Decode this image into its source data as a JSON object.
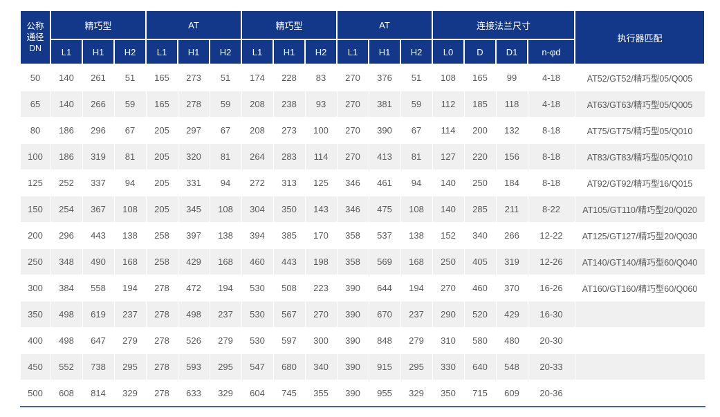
{
  "colors": {
    "header_bg": "#13388a",
    "header_text": "#ffffff",
    "row_bg": "#ffffff",
    "row_alt_bg": "#f0f0f0",
    "cell_text": "#595959",
    "bottom_rule": "#3c64b1"
  },
  "table": {
    "corner_lines": [
      "公称",
      "通径",
      "DN"
    ],
    "actuator_label": "执行器匹配",
    "groups": [
      {
        "label": "精巧型",
        "cols": [
          "L1",
          "H1",
          "H2"
        ]
      },
      {
        "label": "AT",
        "cols": [
          "L1",
          "H1",
          "H2"
        ]
      },
      {
        "label": "精巧型",
        "cols": [
          "L1",
          "H1",
          "H2"
        ]
      },
      {
        "label": "AT",
        "cols": [
          "L1",
          "H1",
          "H2"
        ]
      },
      {
        "label": "连接法兰尺寸",
        "cols": [
          "L0",
          "D",
          "D1",
          "n-φd"
        ]
      }
    ],
    "rows": [
      {
        "dn": "50",
        "values": [
          "140",
          "261",
          "51",
          "165",
          "273",
          "51",
          "174",
          "228",
          "83",
          "270",
          "376",
          "51",
          "108",
          "165",
          "99",
          "4-18"
        ],
        "actuator": "AT52/GT52/精巧型05/Q005"
      },
      {
        "dn": "65",
        "values": [
          "140",
          "266",
          "59",
          "165",
          "278",
          "59",
          "208",
          "238",
          "93",
          "270",
          "381",
          "59",
          "112",
          "185",
          "118",
          "4-18"
        ],
        "actuator": "AT63/GT63/精巧型05/Q005"
      },
      {
        "dn": "80",
        "values": [
          "186",
          "296",
          "67",
          "205",
          "297",
          "67",
          "208",
          "273",
          "100",
          "270",
          "390",
          "67",
          "114",
          "200",
          "132",
          "8-18"
        ],
        "actuator": "AT75/GT75/精巧型05/Q010"
      },
      {
        "dn": "100",
        "values": [
          "186",
          "319",
          "81",
          "205",
          "320",
          "81",
          "264",
          "283",
          "114",
          "270",
          "413",
          "81",
          "127",
          "220",
          "156",
          "8-18"
        ],
        "actuator": "AT83/GT83/精巧型05/Q010"
      },
      {
        "dn": "125",
        "values": [
          "252",
          "337",
          "94",
          "205",
          "331",
          "94",
          "272",
          "313",
          "125",
          "346",
          "461",
          "94",
          "140",
          "250",
          "184",
          "8-18"
        ],
        "actuator": "AT92/GT92/精巧型16/Q015"
      },
      {
        "dn": "150",
        "values": [
          "254",
          "367",
          "108",
          "205",
          "345",
          "108",
          "304",
          "350",
          "143",
          "346",
          "475",
          "108",
          "140",
          "285",
          "211",
          "8-22"
        ],
        "actuator": "AT105/GT110/精巧型20/Q020"
      },
      {
        "dn": "200",
        "values": [
          "296",
          "443",
          "138",
          "258",
          "397",
          "138",
          "394",
          "385",
          "170",
          "358",
          "537",
          "138",
          "152",
          "340",
          "266",
          "12-22"
        ],
        "actuator": "AT125/GT127/精巧型20/Q030"
      },
      {
        "dn": "250",
        "values": [
          "348",
          "490",
          "168",
          "258",
          "429",
          "168",
          "460",
          "443",
          "198",
          "358",
          "569",
          "168",
          "250",
          "405",
          "319",
          "12-26"
        ],
        "actuator": "AT140/GT140/精巧型60/Q040"
      },
      {
        "dn": "300",
        "values": [
          "384",
          "558",
          "194",
          "278",
          "472",
          "194",
          "530",
          "508",
          "223",
          "390",
          "644",
          "194",
          "270",
          "460",
          "370",
          "16-26"
        ],
        "actuator": "AT160/GT160/精巧型60/Q060"
      },
      {
        "dn": "350",
        "values": [
          "498",
          "619",
          "237",
          "278",
          "498",
          "237",
          "530",
          "567",
          "270",
          "390",
          "670",
          "237",
          "290",
          "520",
          "429",
          "16-30"
        ],
        "actuator": ""
      },
      {
        "dn": "400",
        "values": [
          "498",
          "647",
          "279",
          "278",
          "526",
          "279",
          "530",
          "597",
          "300",
          "390",
          "848",
          "279",
          "310",
          "580",
          "480",
          "20-30"
        ],
        "actuator": ""
      },
      {
        "dn": "450",
        "values": [
          "552",
          "738",
          "295",
          "278",
          "593",
          "295",
          "547",
          "680",
          "340",
          "390",
          "915",
          "295",
          "330",
          "640",
          "548",
          "20-33"
        ],
        "actuator": ""
      },
      {
        "dn": "500",
        "values": [
          "608",
          "814",
          "329",
          "278",
          "633",
          "329",
          "604",
          "745",
          "355",
          "390",
          "955",
          "329",
          "350",
          "715",
          "609",
          "20-36"
        ],
        "actuator": ""
      }
    ]
  }
}
